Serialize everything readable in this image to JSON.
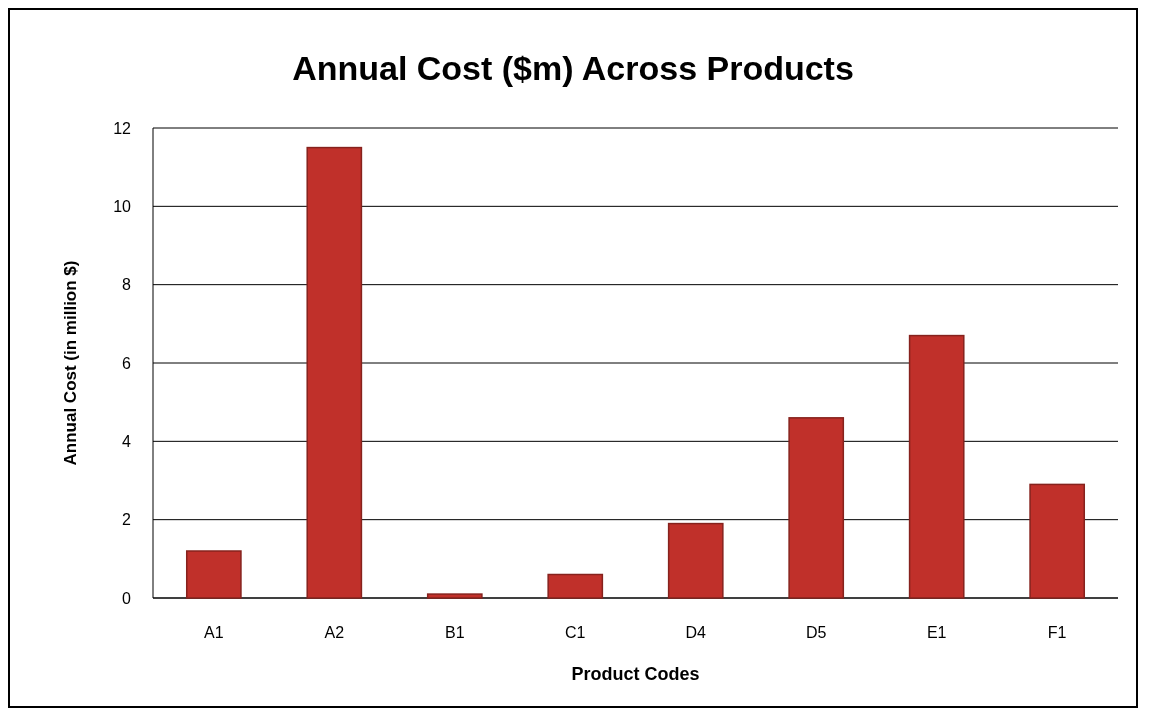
{
  "chart_data": {
    "type": "bar",
    "title": "Annual Cost ($m) Across Products",
    "xlabel": "Product Codes",
    "ylabel": "Annual Cost  (in million $)",
    "categories": [
      "A1",
      "A2",
      "B1",
      "C1",
      "D4",
      "D5",
      "E1",
      "F1"
    ],
    "values": [
      1.2,
      11.5,
      0.1,
      0.6,
      1.9,
      4.6,
      6.7,
      2.9
    ],
    "color": "#c0302a",
    "ylim": [
      0,
      12
    ],
    "yticks": [
      0,
      2,
      4,
      6,
      8,
      10,
      12
    ],
    "grid": "y"
  }
}
